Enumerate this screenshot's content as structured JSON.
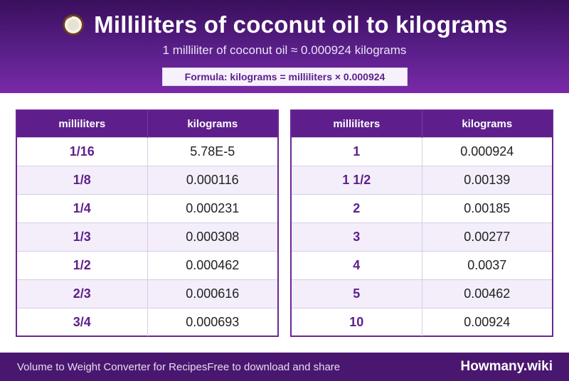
{
  "header": {
    "title": "Milliliters of coconut oil to kilograms",
    "icon": "coconut-icon",
    "subtitle": "1 milliliter of coconut oil ≈ 0.000924 kilograms",
    "formula": "Formula: kilograms = milliliters × 0.000924"
  },
  "tables": [
    {
      "headers": [
        "milliliters",
        "kilograms"
      ],
      "rows": [
        [
          "1/16",
          "5.78E-5"
        ],
        [
          "1/8",
          "0.000116"
        ],
        [
          "1/4",
          "0.000231"
        ],
        [
          "1/3",
          "0.000308"
        ],
        [
          "1/2",
          "0.000462"
        ],
        [
          "2/3",
          "0.000616"
        ],
        [
          "3/4",
          "0.000693"
        ]
      ]
    },
    {
      "headers": [
        "milliliters",
        "kilograms"
      ],
      "rows": [
        [
          "1",
          "0.000924"
        ],
        [
          "1 1/2",
          "0.00139"
        ],
        [
          "2",
          "0.00185"
        ],
        [
          "3",
          "0.00277"
        ],
        [
          "4",
          "0.0037"
        ],
        [
          "5",
          "0.00462"
        ],
        [
          "10",
          "0.00924"
        ]
      ]
    }
  ],
  "footer": {
    "left_text": "Volume to Weight Converter for RecipesFree to download and share",
    "brand": "Howmany.wiki"
  },
  "colors": {
    "header_dark": "#3a0f5c",
    "header_light": "#7a2aa8",
    "table_header": "#5e1f8c",
    "row_alt": "#f3eefa",
    "footer": "#4a1770"
  }
}
